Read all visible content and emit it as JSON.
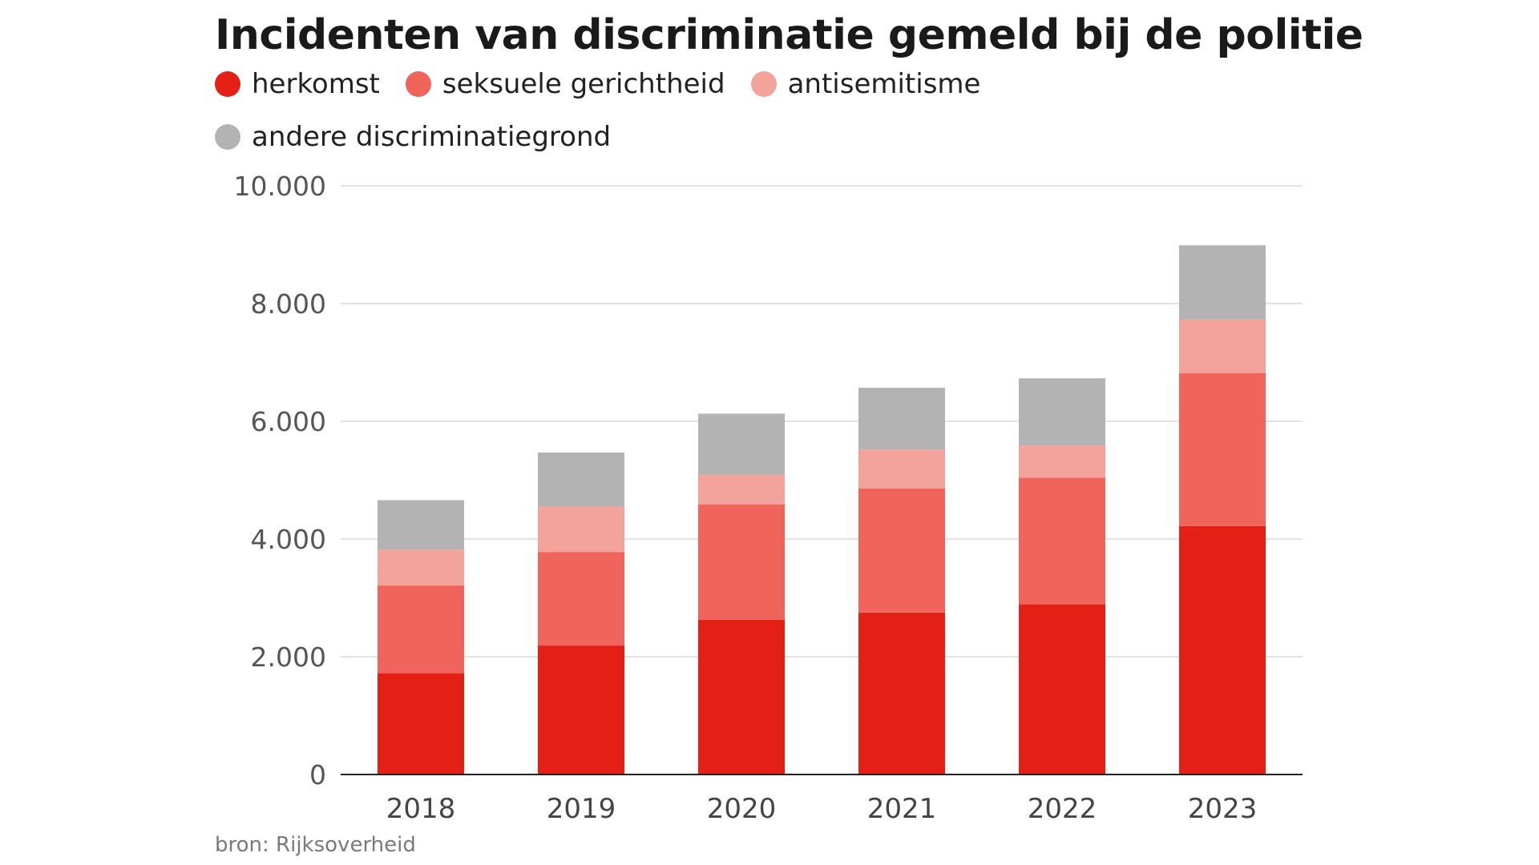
{
  "chart_data": {
    "type": "bar",
    "stacked": true,
    "title": "Incidenten van discriminatie gemeld bij de politie",
    "categories": [
      "2018",
      "2019",
      "2020",
      "2021",
      "2022",
      "2023"
    ],
    "series": [
      {
        "name": "herkomst",
        "color": "#e41f16",
        "values": [
          1720,
          2190,
          2630,
          2750,
          2890,
          4220
        ]
      },
      {
        "name": "seksuele gerichtheid",
        "color": "#f0645b",
        "values": [
          1490,
          1590,
          1960,
          2110,
          2150,
          2600
        ]
      },
      {
        "name": "antisemitisme",
        "color": "#f4a29c",
        "values": [
          610,
          770,
          500,
          660,
          550,
          910
        ]
      },
      {
        "name": "andere discriminatiegrond",
        "color": "#b3b3b3",
        "values": [
          840,
          920,
          1040,
          1050,
          1140,
          1260
        ]
      }
    ],
    "ylim": [
      0,
      10000
    ],
    "yticks": [
      0,
      2000,
      4000,
      6000,
      8000,
      10000
    ],
    "ytick_labels": [
      "0",
      "2.000",
      "4.000",
      "6.000",
      "8.000",
      "10.000"
    ],
    "xlabel": "",
    "ylabel": "",
    "grid": true,
    "legend_position": "top-left"
  },
  "source": "bron: Rijksoverheid"
}
